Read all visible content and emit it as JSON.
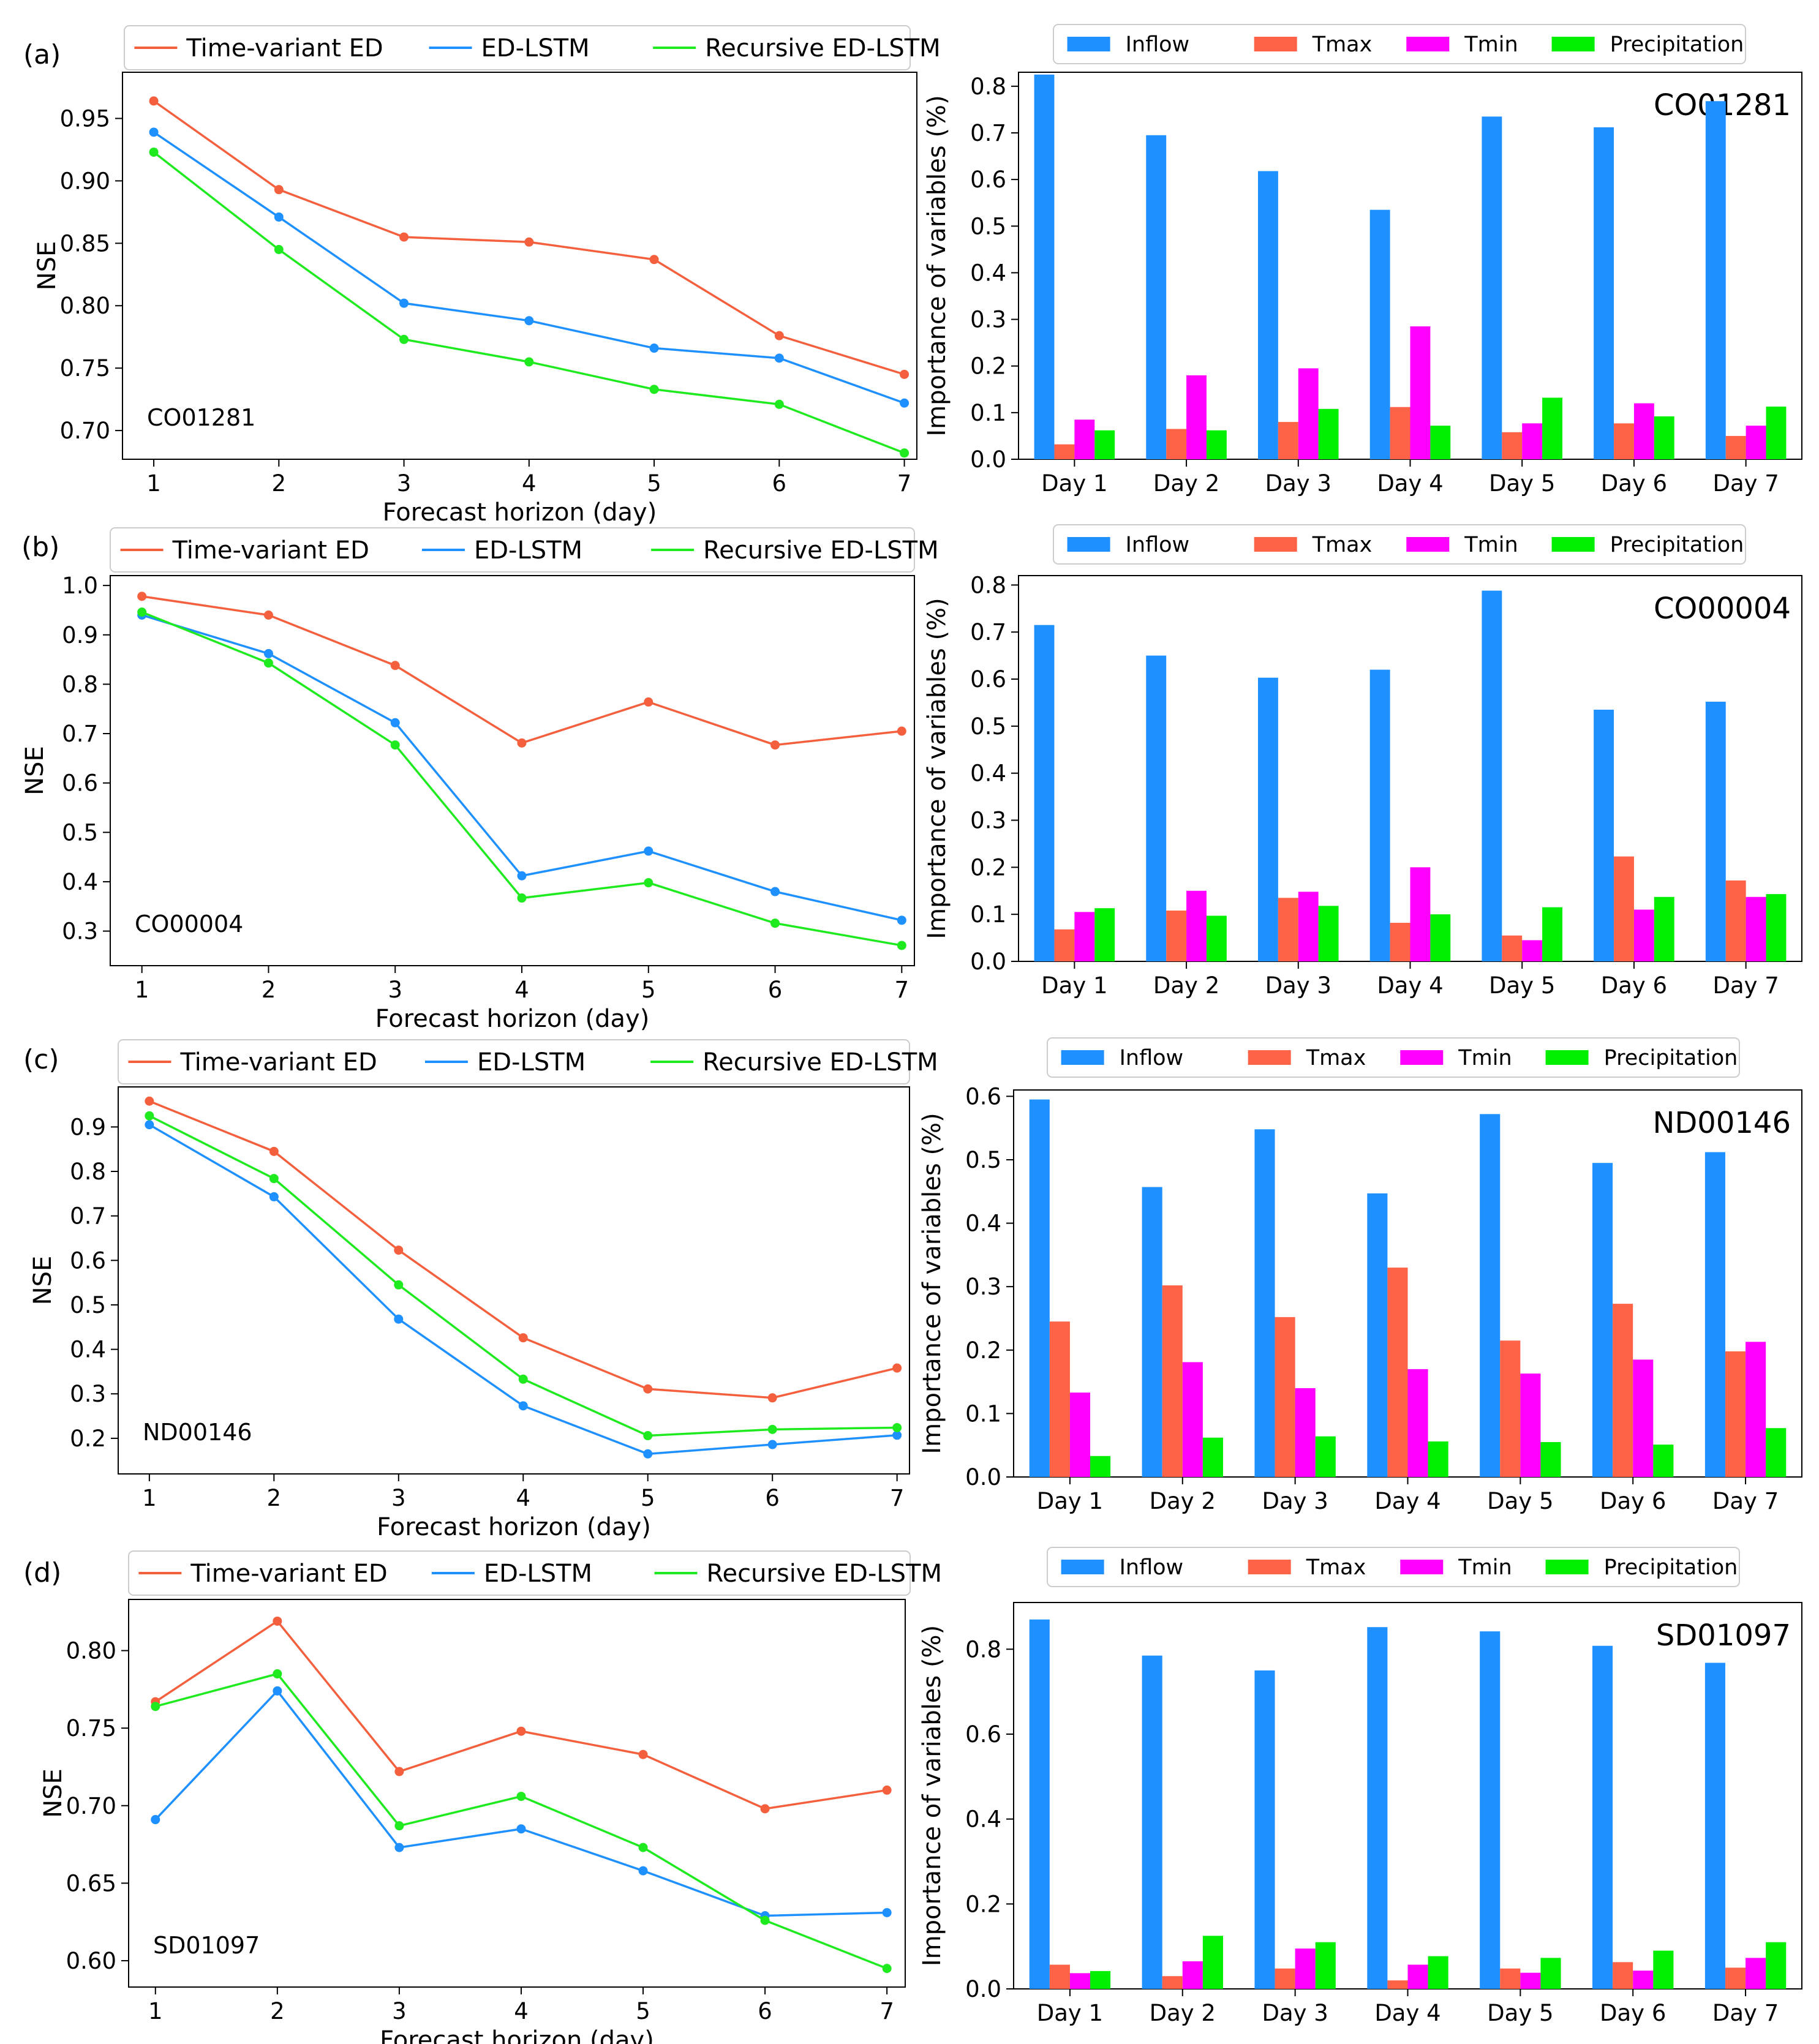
{
  "figure": {
    "panel_labels": [
      "(a)",
      "(b)",
      "(c)",
      "(d)"
    ],
    "colors": {
      "time_variant_ed": "#F4603E",
      "ed_lstm": "#1E90FF",
      "recursive_ed_lstm": "#1FEA1F",
      "inflow": "#1E90FF",
      "tmax": "#FF6347",
      "tmin": "#FF00FF",
      "precipitation": "#00EE00"
    }
  },
  "chart_data": [
    {
      "type": "line",
      "panel": "(a)",
      "station": "CO01281",
      "xlabel": "Forecast horizon (day)",
      "ylabel": "NSE",
      "x": [
        1,
        2,
        3,
        4,
        5,
        6,
        7
      ],
      "xlim": [
        0.75,
        7.1
      ],
      "ylim": [
        0.677,
        0.987
      ],
      "yticks": [
        0.7,
        0.75,
        0.8,
        0.85,
        0.9,
        0.95
      ],
      "ytick_labels": [
        "0.70",
        "0.75",
        "0.80",
        "0.85",
        "0.90",
        "0.95"
      ],
      "legend": [
        "Time-variant ED",
        "ED-LSTM",
        "Recursive ED-LSTM"
      ],
      "series": [
        {
          "name": "Time-variant ED",
          "color_key": "time_variant_ed",
          "values": [
            0.964,
            0.893,
            0.855,
            0.851,
            0.837,
            0.776,
            0.745
          ]
        },
        {
          "name": "ED-LSTM",
          "color_key": "ed_lstm",
          "values": [
            0.939,
            0.871,
            0.802,
            0.788,
            0.766,
            0.758,
            0.722
          ]
        },
        {
          "name": "Recursive ED-LSTM",
          "color_key": "recursive_ed_lstm",
          "values": [
            0.923,
            0.845,
            0.773,
            0.755,
            0.733,
            0.721,
            0.682
          ]
        }
      ]
    },
    {
      "type": "bar",
      "panel": "(a)",
      "station": "CO01281",
      "ylabel": "Importance of variables (%)",
      "categories": [
        "Day 1",
        "Day 2",
        "Day 3",
        "Day 4",
        "Day 5",
        "Day 6",
        "Day 7"
      ],
      "ylim": [
        0,
        0.83
      ],
      "yticks": [
        0.0,
        0.1,
        0.2,
        0.3,
        0.4,
        0.5,
        0.6,
        0.7,
        0.8
      ],
      "ytick_labels": [
        "0.0",
        "0.1",
        "0.2",
        "0.3",
        "0.4",
        "0.5",
        "0.6",
        "0.7",
        "0.8"
      ],
      "legend": [
        "Inflow",
        "Tmax",
        "Tmin",
        "Precipitation"
      ],
      "series": [
        {
          "name": "Inflow",
          "color_key": "inflow",
          "values": [
            0.825,
            0.695,
            0.618,
            0.535,
            0.735,
            0.712,
            0.768
          ]
        },
        {
          "name": "Tmax",
          "color_key": "tmax",
          "values": [
            0.032,
            0.065,
            0.08,
            0.112,
            0.058,
            0.077,
            0.05
          ]
        },
        {
          "name": "Tmin",
          "color_key": "tmin",
          "values": [
            0.085,
            0.18,
            0.195,
            0.285,
            0.077,
            0.12,
            0.072
          ]
        },
        {
          "name": "Precipitation",
          "color_key": "precipitation",
          "values": [
            0.062,
            0.062,
            0.108,
            0.072,
            0.132,
            0.092,
            0.113
          ]
        }
      ]
    },
    {
      "type": "line",
      "panel": "(b)",
      "station": "CO00004",
      "xlabel": "Forecast horizon (day)",
      "ylabel": "NSE",
      "x": [
        1,
        2,
        3,
        4,
        5,
        6,
        7
      ],
      "xlim": [
        0.75,
        7.1
      ],
      "ylim": [
        0.23,
        1.02
      ],
      "yticks": [
        0.3,
        0.4,
        0.5,
        0.6,
        0.7,
        0.8,
        0.9,
        1.0
      ],
      "ytick_labels": [
        "0.3",
        "0.4",
        "0.5",
        "0.6",
        "0.7",
        "0.8",
        "0.9",
        "1.0"
      ],
      "legend": [
        "Time-variant ED",
        "ED-LSTM",
        "Recursive ED-LSTM"
      ],
      "series": [
        {
          "name": "Time-variant ED",
          "color_key": "time_variant_ed",
          "values": [
            0.978,
            0.94,
            0.838,
            0.681,
            0.764,
            0.677,
            0.705
          ]
        },
        {
          "name": "ED-LSTM",
          "color_key": "ed_lstm",
          "values": [
            0.94,
            0.862,
            0.722,
            0.412,
            0.462,
            0.38,
            0.322
          ]
        },
        {
          "name": "Recursive ED-LSTM",
          "color_key": "recursive_ed_lstm",
          "values": [
            0.946,
            0.843,
            0.677,
            0.367,
            0.398,
            0.316,
            0.271
          ]
        }
      ]
    },
    {
      "type": "bar",
      "panel": "(b)",
      "station": "CO00004",
      "ylabel": "Importance of variables (%)",
      "categories": [
        "Day 1",
        "Day 2",
        "Day 3",
        "Day 4",
        "Day 5",
        "Day 6",
        "Day 7"
      ],
      "ylim": [
        0,
        0.82
      ],
      "yticks": [
        0.0,
        0.1,
        0.2,
        0.3,
        0.4,
        0.5,
        0.6,
        0.7,
        0.8
      ],
      "ytick_labels": [
        "0.0",
        "0.1",
        "0.2",
        "0.3",
        "0.4",
        "0.5",
        "0.6",
        "0.7",
        "0.8"
      ],
      "legend": [
        "Inflow",
        "Tmax",
        "Tmin",
        "Precipitation"
      ],
      "series": [
        {
          "name": "Inflow",
          "color_key": "inflow",
          "values": [
            0.715,
            0.65,
            0.603,
            0.62,
            0.788,
            0.535,
            0.552
          ]
        },
        {
          "name": "Tmax",
          "color_key": "tmax",
          "values": [
            0.068,
            0.108,
            0.135,
            0.082,
            0.055,
            0.223,
            0.172
          ]
        },
        {
          "name": "Tmin",
          "color_key": "tmin",
          "values": [
            0.105,
            0.15,
            0.148,
            0.2,
            0.045,
            0.11,
            0.137
          ]
        },
        {
          "name": "Precipitation",
          "color_key": "precipitation",
          "values": [
            0.113,
            0.097,
            0.118,
            0.1,
            0.115,
            0.137,
            0.143
          ]
        }
      ]
    },
    {
      "type": "line",
      "panel": "(c)",
      "station": "ND00146",
      "xlabel": "Forecast horizon (day)",
      "ylabel": "NSE",
      "x": [
        1,
        2,
        3,
        4,
        5,
        6,
        7
      ],
      "xlim": [
        0.75,
        7.1
      ],
      "ylim": [
        0.12,
        0.99
      ],
      "yticks": [
        0.2,
        0.3,
        0.4,
        0.5,
        0.6,
        0.7,
        0.8,
        0.9
      ],
      "ytick_labels": [
        "0.2",
        "0.3",
        "0.4",
        "0.5",
        "0.6",
        "0.7",
        "0.8",
        "0.9"
      ],
      "legend": [
        "Time-variant ED",
        "ED-LSTM",
        "Recursive ED-LSTM"
      ],
      "series": [
        {
          "name": "Time-variant ED",
          "color_key": "time_variant_ed",
          "values": [
            0.958,
            0.845,
            0.623,
            0.426,
            0.311,
            0.291,
            0.358
          ]
        },
        {
          "name": "ED-LSTM",
          "color_key": "ed_lstm",
          "values": [
            0.905,
            0.743,
            0.468,
            0.273,
            0.165,
            0.186,
            0.207
          ]
        },
        {
          "name": "Recursive ED-LSTM",
          "color_key": "recursive_ed_lstm",
          "values": [
            0.925,
            0.784,
            0.545,
            0.333,
            0.206,
            0.22,
            0.224
          ]
        }
      ]
    },
    {
      "type": "bar",
      "panel": "(c)",
      "station": "ND00146",
      "ylabel": "Importance of variables (%)",
      "categories": [
        "Day 1",
        "Day 2",
        "Day 3",
        "Day 4",
        "Day 5",
        "Day 6",
        "Day 7"
      ],
      "ylim": [
        0,
        0.61
      ],
      "yticks": [
        0.0,
        0.1,
        0.2,
        0.3,
        0.4,
        0.5,
        0.6
      ],
      "ytick_labels": [
        "0.0",
        "0.1",
        "0.2",
        "0.3",
        "0.4",
        "0.5",
        "0.6"
      ],
      "legend": [
        "Inflow",
        "Tmax",
        "Tmin",
        "Precipitation"
      ],
      "series": [
        {
          "name": "Inflow",
          "color_key": "inflow",
          "values": [
            0.595,
            0.457,
            0.548,
            0.447,
            0.572,
            0.495,
            0.512
          ]
        },
        {
          "name": "Tmax",
          "color_key": "tmax",
          "values": [
            0.245,
            0.302,
            0.252,
            0.33,
            0.215,
            0.273,
            0.198
          ]
        },
        {
          "name": "Tmin",
          "color_key": "tmin",
          "values": [
            0.133,
            0.181,
            0.14,
            0.17,
            0.163,
            0.185,
            0.213
          ]
        },
        {
          "name": "Precipitation",
          "color_key": "precipitation",
          "values": [
            0.033,
            0.062,
            0.064,
            0.056,
            0.055,
            0.051,
            0.077
          ]
        }
      ]
    },
    {
      "type": "line",
      "panel": "(d)",
      "station": "SD01097",
      "xlabel": "Forecast horizon (day)",
      "ylabel": "NSE",
      "x": [
        1,
        2,
        3,
        4,
        5,
        6,
        7
      ],
      "xlim": [
        0.78,
        7.15
      ],
      "ylim": [
        0.583,
        0.833
      ],
      "yticks": [
        0.6,
        0.65,
        0.7,
        0.75,
        0.8
      ],
      "ytick_labels": [
        "0.60",
        "0.65",
        "0.70",
        "0.75",
        "0.80"
      ],
      "legend": [
        "Time-variant ED",
        "ED-LSTM",
        "Recursive ED-LSTM"
      ],
      "series": [
        {
          "name": "Time-variant ED",
          "color_key": "time_variant_ed",
          "values": [
            0.767,
            0.819,
            0.722,
            0.748,
            0.733,
            0.698,
            0.71
          ]
        },
        {
          "name": "ED-LSTM",
          "color_key": "ed_lstm",
          "values": [
            0.691,
            0.774,
            0.673,
            0.685,
            0.658,
            0.629,
            0.631
          ]
        },
        {
          "name": "Recursive ED-LSTM",
          "color_key": "recursive_ed_lstm",
          "values": [
            0.764,
            0.785,
            0.687,
            0.706,
            0.673,
            0.626,
            0.595
          ]
        }
      ]
    },
    {
      "type": "bar",
      "panel": "(d)",
      "station": "SD01097",
      "ylabel": "Importance of variables (%)",
      "categories": [
        "Day 1",
        "Day 2",
        "Day 3",
        "Day 4",
        "Day 5",
        "Day 6",
        "Day 7"
      ],
      "ylim": [
        0,
        0.91
      ],
      "yticks": [
        0.0,
        0.2,
        0.4,
        0.6,
        0.8
      ],
      "ytick_labels": [
        "0.0",
        "0.2",
        "0.4",
        "0.6",
        "0.8"
      ],
      "legend": [
        "Inflow",
        "Tmax",
        "Tmin",
        "Precipitation"
      ],
      "series": [
        {
          "name": "Inflow",
          "color_key": "inflow",
          "values": [
            0.87,
            0.785,
            0.75,
            0.852,
            0.842,
            0.808,
            0.768
          ]
        },
        {
          "name": "Tmax",
          "color_key": "tmax",
          "values": [
            0.057,
            0.03,
            0.048,
            0.02,
            0.048,
            0.063,
            0.05
          ]
        },
        {
          "name": "Tmin",
          "color_key": "tmin",
          "values": [
            0.037,
            0.065,
            0.095,
            0.057,
            0.038,
            0.043,
            0.073
          ]
        },
        {
          "name": "Precipitation",
          "color_key": "precipitation",
          "values": [
            0.042,
            0.125,
            0.11,
            0.077,
            0.073,
            0.09,
            0.11
          ]
        }
      ]
    }
  ]
}
